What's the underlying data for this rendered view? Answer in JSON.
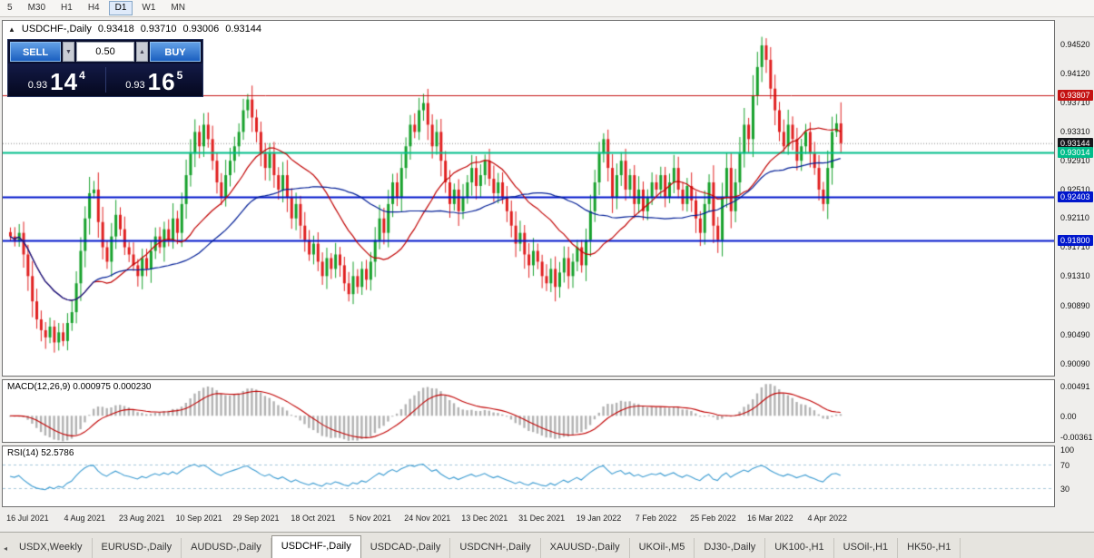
{
  "toolbar": {
    "timeframes": [
      "5",
      "M30",
      "H1",
      "H4",
      "D1",
      "W1",
      "MN"
    ],
    "active_timeframe": "D1"
  },
  "chart_header": {
    "expand_icon": "▲",
    "symbol": "USDCHF-,Daily",
    "open": "0.93418",
    "high": "0.93710",
    "low": "0.93006",
    "close": "0.93144"
  },
  "trade_panel": {
    "sell_label": "SELL",
    "buy_label": "BUY",
    "volume": "0.50",
    "volume_down_icon": "▼",
    "volume_up_icon": "▲",
    "sell_price": {
      "prefix": "0.93",
      "big": "14",
      "sup": "4"
    },
    "buy_price": {
      "prefix": "0.93",
      "big": "16",
      "sup": "5"
    }
  },
  "price_axis": {
    "ticks": [
      "0.94520",
      "0.94120",
      "0.93710",
      "0.93310",
      "0.92910",
      "0.92510",
      "0.92110",
      "0.91710",
      "0.91310",
      "0.90890",
      "0.90490",
      "0.90090"
    ],
    "badges": [
      {
        "value": "0.93807",
        "color": "#c41212"
      },
      {
        "value": "0.93144",
        "color": "#16171b"
      },
      {
        "value": "0.93014",
        "color": "#00bd8a"
      },
      {
        "value": "0.92403",
        "color": "#0016cc"
      },
      {
        "value": "0.91800",
        "color": "#0016cc"
      }
    ]
  },
  "macd_panel": {
    "label": "MACD(12,26,9) 0.000975 0.000230",
    "axis_labels": [
      "0.00491",
      "0.00",
      "-0.00361"
    ]
  },
  "rsi_panel": {
    "label": "RSI(14) 52.5786",
    "axis_labels": [
      "100",
      "70",
      "30"
    ]
  },
  "tabs": {
    "scroll_icon": "◂",
    "items": [
      "USDX,Weekly",
      "EURUSD-,Daily",
      "AUDUSD-,Daily",
      "USDCHF-,Daily",
      "USDCAD-,Daily",
      "USDCNH-,Daily",
      "XAUUSD-,Daily",
      "UKOil-,M5",
      "DJ30-,Daily",
      "UK100-,H1",
      "USOil-,H1",
      "HK50-,H1"
    ],
    "active": "USDCHF-,Daily"
  },
  "colors": {
    "candle_up": "#17a12c",
    "candle_down": "#e02020",
    "ma_fast": "#c00000",
    "ma_slow": "#001e96",
    "macd_hist": "#b2b2b2",
    "macd_signal": "#c00000",
    "rsi_line": "#3b9bd1",
    "level_dash": "#a4c6da",
    "bid_line": "#8c8c8c"
  },
  "chart_data": {
    "type": "candlestick",
    "symbol": "USDCHF-",
    "timeframe": "Daily",
    "x_labels": [
      "16 Jul 2021",
      "4 Aug 2021",
      "23 Aug 2021",
      "10 Sep 2021",
      "29 Sep 2021",
      "18 Oct 2021",
      "5 Nov 2021",
      "24 Nov 2021",
      "13 Dec 2021",
      "31 Dec 2021",
      "19 Jan 2022",
      "7 Feb 2022",
      "25 Feb 2022",
      "16 Mar 2022",
      "4 Apr 2022"
    ],
    "y_range": [
      0.8992,
      0.9484
    ],
    "closes": [
      0.9185,
      0.9178,
      0.919,
      0.916,
      0.913,
      0.9095,
      0.907,
      0.9055,
      0.9045,
      0.906,
      0.9038,
      0.9052,
      0.904,
      0.9065,
      0.908,
      0.912,
      0.9165,
      0.921,
      0.9245,
      0.925,
      0.9205,
      0.917,
      0.915,
      0.9185,
      0.9215,
      0.9195,
      0.917,
      0.916,
      0.9145,
      0.913,
      0.9155,
      0.914,
      0.9165,
      0.9185,
      0.917,
      0.9195,
      0.918,
      0.921,
      0.919,
      0.923,
      0.927,
      0.93,
      0.933,
      0.931,
      0.934,
      0.932,
      0.929,
      0.926,
      0.924,
      0.927,
      0.929,
      0.931,
      0.933,
      0.936,
      0.9375,
      0.935,
      0.933,
      0.93,
      0.928,
      0.93,
      0.927,
      0.925,
      0.927,
      0.924,
      0.921,
      0.923,
      0.92,
      0.918,
      0.916,
      0.9175,
      0.915,
      0.913,
      0.9155,
      0.914,
      0.916,
      0.9145,
      0.912,
      0.9105,
      0.913,
      0.9115,
      0.914,
      0.9125,
      0.915,
      0.918,
      0.921,
      0.919,
      0.923,
      0.926,
      0.924,
      0.928,
      0.931,
      0.934,
      0.933,
      0.936,
      0.937,
      0.934,
      0.931,
      0.933,
      0.929,
      0.926,
      0.923,
      0.925,
      0.922,
      0.924,
      0.926,
      0.928,
      0.9255,
      0.927,
      0.929,
      0.9265,
      0.9245,
      0.926,
      0.924,
      0.922,
      0.92,
      0.9175,
      0.919,
      0.916,
      0.9145,
      0.9165,
      0.915,
      0.913,
      0.912,
      0.914,
      0.9115,
      0.9135,
      0.9155,
      0.913,
      0.915,
      0.917,
      0.9145,
      0.918,
      0.922,
      0.926,
      0.93,
      0.932,
      0.928,
      0.924,
      0.927,
      0.929,
      0.925,
      0.927,
      0.923,
      0.925,
      0.922,
      0.924,
      0.926,
      0.925,
      0.927,
      0.924,
      0.926,
      0.928,
      0.925,
      0.923,
      0.9255,
      0.9235,
      0.921,
      0.919,
      0.923,
      0.926,
      0.92,
      0.918,
      0.924,
      0.928,
      0.922,
      0.926,
      0.93,
      0.934,
      0.932,
      0.938,
      0.942,
      0.945,
      0.943,
      0.939,
      0.936,
      0.933,
      0.931,
      0.934,
      0.932,
      0.929,
      0.931,
      0.933,
      0.93,
      0.928,
      0.925,
      0.923,
      0.928,
      0.933,
      0.9342,
      0.93144
    ],
    "last_candle": {
      "open": 0.93418,
      "high": 0.9371,
      "low": 0.93006,
      "close": 0.93144
    },
    "moving_averages": [
      {
        "period": 20,
        "color": "#c00000"
      },
      {
        "period": 40,
        "color": "#001e96"
      }
    ],
    "horizontal_lines": [
      {
        "price": 0.93807,
        "color": "#c41212",
        "width": 1
      },
      {
        "price": 0.93014,
        "color": "#00bd8a",
        "width": 2
      },
      {
        "price": 0.92403,
        "color": "#0016cc",
        "width": 2
      },
      {
        "price": 0.918,
        "color": "#0016cc",
        "width": 2
      }
    ],
    "bid_price": 0.93144,
    "macd": {
      "fast": 12,
      "slow": 26,
      "signal": 9,
      "value": 0.000975,
      "signal_value": 0.00023,
      "scale_max": 0.00491,
      "scale_min": -0.00361
    },
    "rsi": {
      "period": 14,
      "value": 52.5786,
      "levels": [
        70,
        30
      ],
      "scale": [
        0,
        100
      ]
    }
  }
}
